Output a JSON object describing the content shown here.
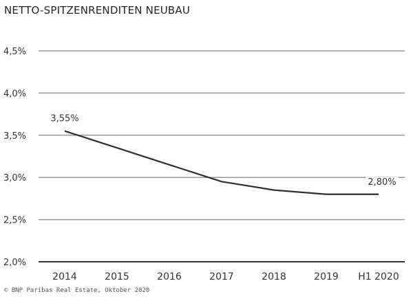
{
  "chart_data": {
    "type": "line",
    "title": "NETTO-SPITZENRENDITEN NEUBAU",
    "xlabel": "",
    "ylabel": "",
    "categories": [
      "2014",
      "2015",
      "2016",
      "2017",
      "2018",
      "2019",
      "H1 2020"
    ],
    "series": [
      {
        "values": [
          3.55,
          3.35,
          3.15,
          2.95,
          2.85,
          2.8,
          2.8
        ],
        "color": "#2b2f36"
      }
    ],
    "ylim": [
      2.0,
      4.5
    ],
    "yticks": [
      "2,0%",
      "2,5%",
      "3,0%",
      "3,5%",
      "4,0%",
      "4,5%"
    ],
    "data_labels": [
      {
        "index": 0,
        "text": "3,55%"
      },
      {
        "index": 6,
        "text": "2,80%"
      }
    ],
    "grid": true,
    "legend": "none"
  },
  "source": "© BNP Paribas Real Estate, Oktober 2020"
}
